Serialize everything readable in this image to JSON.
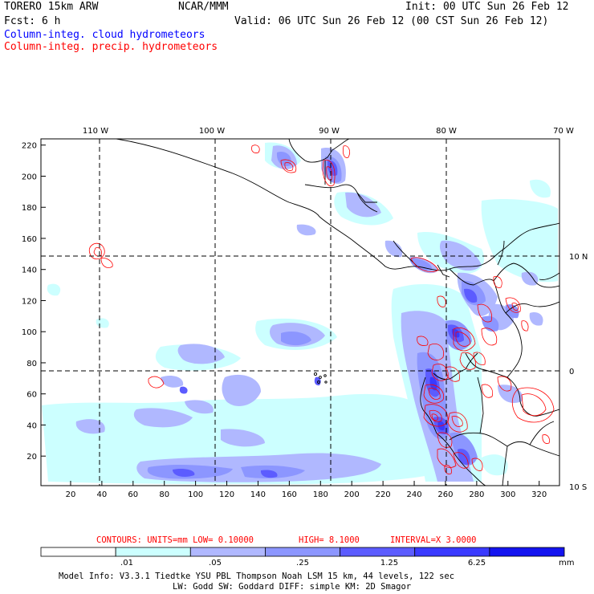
{
  "header": {
    "model": "TORERO  15km ARW",
    "org": "NCAR/MMM",
    "init": "Init: 00 UTC Sun 26 Feb 12",
    "fcst": "Fcst:    6 h",
    "valid": "Valid: 06 UTC Sun 26 Feb 12 (00 CST Sun 26 Feb 12)",
    "field_cloud": "Column-integ. cloud hydrometeors",
    "field_precip": "Column-integ. precip. hydrometeors",
    "color_cloud": "#0000ff",
    "color_precip": "#ff0000"
  },
  "map": {
    "longitudes": [
      "110 W",
      "100 W",
      "90 W",
      "80 W",
      "70 W"
    ],
    "latitudes": [
      "10 N",
      "0",
      "10 S"
    ],
    "x_ticks": [
      "20",
      "40",
      "60",
      "80",
      "100",
      "120",
      "140",
      "160",
      "180",
      "200",
      "220",
      "240",
      "260",
      "280",
      "300",
      "320"
    ],
    "y_ticks": [
      "20",
      "40",
      "60",
      "80",
      "100",
      "120",
      "140",
      "160",
      "180",
      "200",
      "220"
    ],
    "x_range": [
      1,
      333
    ],
    "y_range": [
      1,
      224
    ]
  },
  "contours": {
    "label": "CONTOURS:  UNITS=mm  LOW= 0.10000",
    "high": "HIGH=  8.1000",
    "interval": "INTERVAL=X  3.0000"
  },
  "colorbar": {
    "labels": [
      ".01",
      ".05",
      ".25",
      "1.25",
      "6.25"
    ],
    "unit": "mm",
    "colors": [
      "#ffffff",
      "#ccffff",
      "#b0b8ff",
      "#8c96ff",
      "#5c5cff",
      "#3a3aff",
      "#1414f0"
    ]
  },
  "footer": {
    "line1": "Model Info: V3.3.1    Tiedtke YSU PBL  Thompson     Noah LSM  15 km,   44 levels,  122 sec",
    "line2": "LW: Godd SW: Goddard DIFF: simple KM: 2D Smagor"
  }
}
